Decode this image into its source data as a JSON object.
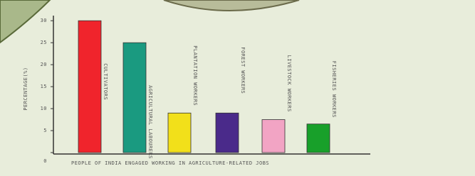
{
  "chart_data": {
    "type": "bar",
    "y_label": "PERCENTAGE(%)",
    "x_label": "PEOPLE OF INDIA ENGAGED WORKING IN AGRICULTURE-RELATED JOBS",
    "categories": [
      "CULTIVATORS",
      "AGRICULTURAL LABOURERS",
      "PLANTATION WORKERS",
      "FOREST WORKERS",
      "LIVESTOCK WORKERS",
      "FISHERIES WORKERS"
    ],
    "values": [
      30,
      25,
      9,
      9,
      7.5,
      6.5
    ],
    "colors": [
      "#f0242c",
      "#1a9a80",
      "#f2e01a",
      "#4a2a8a",
      "#f2a4c4",
      "#18a02a"
    ],
    "ylim": [
      0,
      31
    ],
    "yticks": [
      0,
      5,
      10,
      15,
      20,
      25,
      30
    ]
  }
}
